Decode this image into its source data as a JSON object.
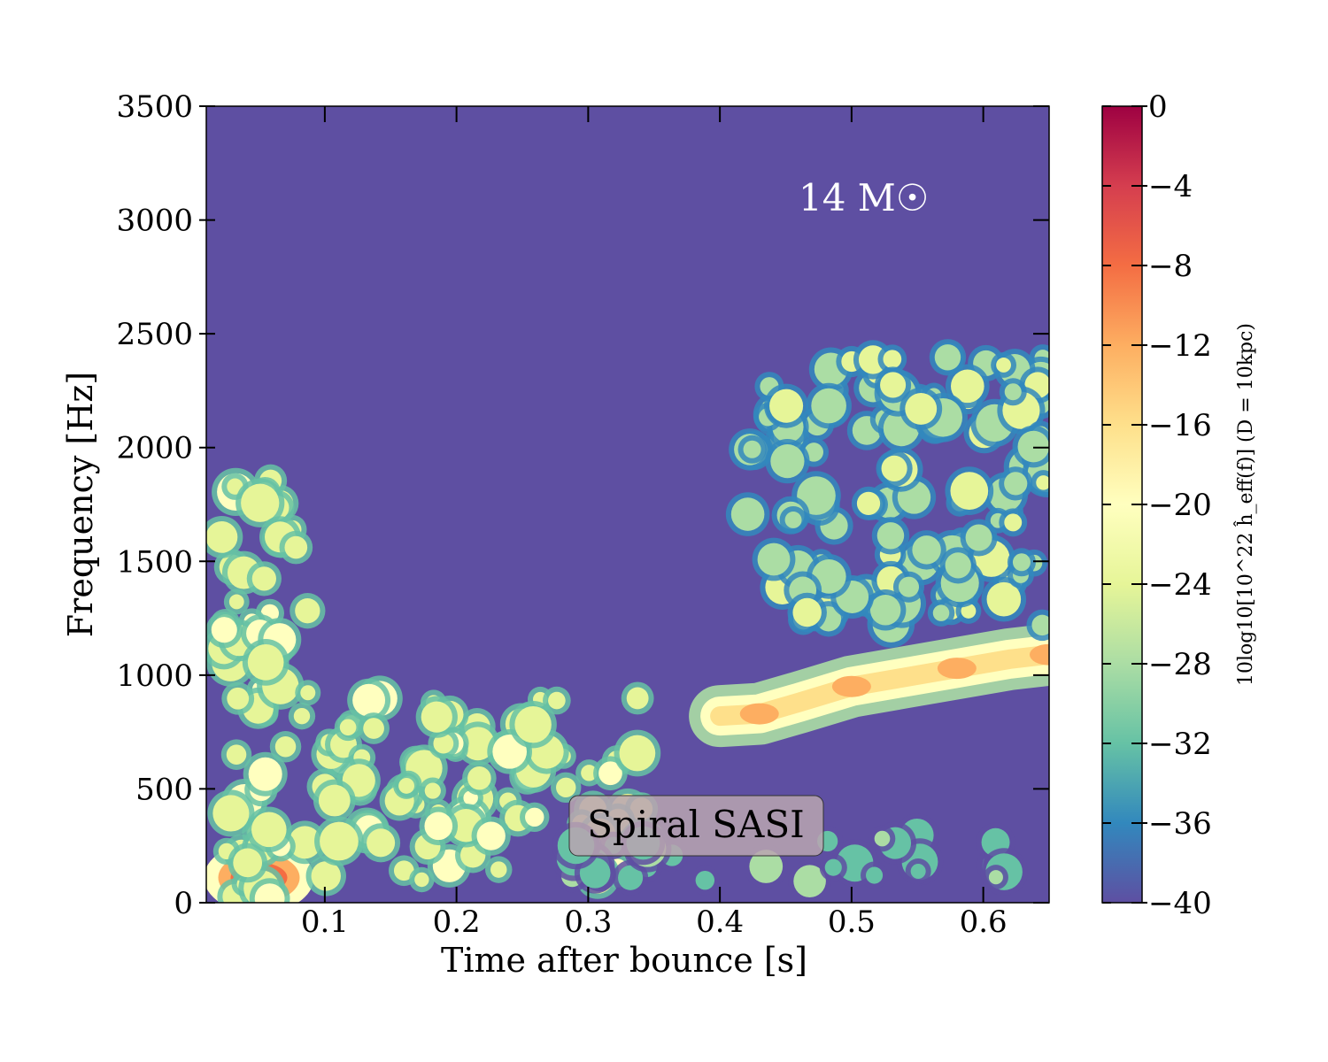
{
  "chart_data": {
    "type": "heatmap",
    "title": "",
    "xlabel": "Time after bounce [s]",
    "ylabel": "Frequency [Hz]",
    "xlim": [
      0.01,
      0.65
    ],
    "ylim": [
      0,
      3500
    ],
    "xticks": [
      "0.1",
      "0.2",
      "0.3",
      "0.4",
      "0.5",
      "0.6"
    ],
    "yticks": [
      "0",
      "500",
      "1000",
      "1500",
      "2000",
      "2500",
      "3000",
      "3500"
    ],
    "colorbar": {
      "label": "10log10[10^22 ĥ_eff(f)] (D = 10kpc)",
      "range": [
        -40,
        0
      ],
      "ticks": [
        "0",
        "−4",
        "−8",
        "−12",
        "−16",
        "−20",
        "−24",
        "−28",
        "−32",
        "−36",
        "−40"
      ],
      "colormap": "Spectral_r",
      "background_color": "#5e4fa2"
    },
    "annotations": {
      "mass": "14 M☉",
      "box": "Spiral SASI"
    },
    "features": [
      {
        "name": "early hot spot",
        "t": 0.05,
        "f": 110,
        "level": -8
      },
      {
        "name": "early broadband",
        "t_range": [
          0.02,
          0.09
        ],
        "f_range": [
          0,
          1900
        ],
        "level": -22
      },
      {
        "name": "SASI band",
        "t_range": [
          0.1,
          0.35
        ],
        "f_range": [
          100,
          900
        ],
        "level": -22
      },
      {
        "name": "main g-mode track",
        "points": [
          [
            0.4,
            820
          ],
          [
            0.43,
            830
          ],
          [
            0.46,
            880
          ],
          [
            0.5,
            950
          ],
          [
            0.54,
            990
          ],
          [
            0.58,
            1030
          ],
          [
            0.62,
            1070
          ],
          [
            0.65,
            1090
          ]
        ],
        "level": -16
      },
      {
        "name": "upper harmonic",
        "t_range": [
          0.42,
          0.65
        ],
        "f_range": [
          1200,
          2400
        ],
        "level": -26
      },
      {
        "name": "low-frequency SASI",
        "t_range": [
          0.28,
          0.62
        ],
        "f_range": [
          80,
          300
        ],
        "level": -30
      }
    ]
  }
}
